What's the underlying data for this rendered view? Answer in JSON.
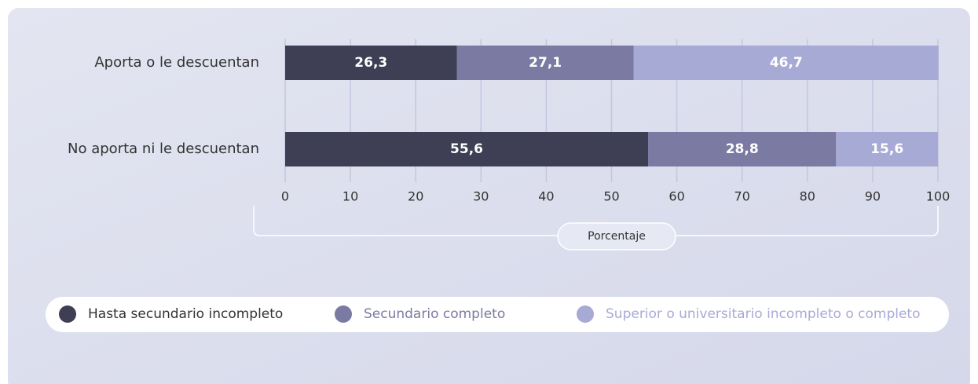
{
  "chart_data": {
    "type": "stacked_barh",
    "categories": [
      "Aporta o le descuentan",
      "No aporta ni le descuentan"
    ],
    "series": [
      {
        "name": "Hasta secundario incompleto",
        "color": "#3e3e54",
        "values": [
          26.3,
          55.6
        ],
        "value_labels": [
          "26,3",
          "55,6"
        ]
      },
      {
        "name": "Secundario completo",
        "color": "#7a7aa2",
        "values": [
          27.1,
          28.8
        ],
        "value_labels": [
          "27,1",
          "28,8"
        ]
      },
      {
        "name": "Superior o universitario incompleto o completo",
        "color": "#a8aad6",
        "values": [
          46.7,
          15.6
        ],
        "value_labels": [
          "46,7",
          "15,6"
        ]
      }
    ],
    "xlim": [
      0,
      100
    ],
    "xticks": [
      0,
      10,
      20,
      30,
      40,
      50,
      60,
      70,
      80,
      90,
      100
    ],
    "xlabel": "Porcentaje",
    "grid": true,
    "legend": "bottom"
  }
}
